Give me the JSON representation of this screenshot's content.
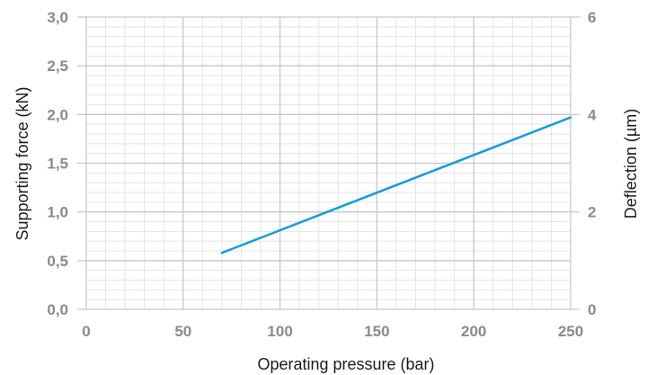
{
  "chart_data": {
    "type": "line",
    "title": "",
    "xlabel": "Operating pressure (bar)",
    "ylabel": "Supporting force (kN)",
    "y2label": "Deflection (µm)",
    "xlim": [
      0,
      250
    ],
    "ylim": [
      0,
      3.0
    ],
    "y2lim": [
      0,
      6
    ],
    "x_ticks": [
      0,
      50,
      100,
      150,
      200,
      250
    ],
    "x_tick_labels": [
      "0",
      "50",
      "100",
      "150",
      "200",
      "250"
    ],
    "y_ticks": [
      0,
      0.5,
      1.0,
      1.5,
      2.0,
      2.5,
      3.0
    ],
    "y_tick_labels": [
      "0,0",
      "0,5",
      "1,0",
      "1,5",
      "2,0",
      "2,5",
      "3,0"
    ],
    "y2_ticks": [
      0,
      2,
      4,
      6
    ],
    "y2_tick_labels": [
      "0",
      "2",
      "4",
      "6"
    ],
    "grid": true,
    "minor_x_step": 10,
    "minor_y_step": 0.1,
    "series": [
      {
        "x": [
          70,
          250
        ],
        "y": [
          0.58,
          1.97
        ],
        "color": "#1a9bd7"
      }
    ],
    "colors": {
      "grid_major": "#c8c8c8",
      "grid_minor": "#e4e4e4",
      "tick_text": "#8a8a8a"
    }
  }
}
